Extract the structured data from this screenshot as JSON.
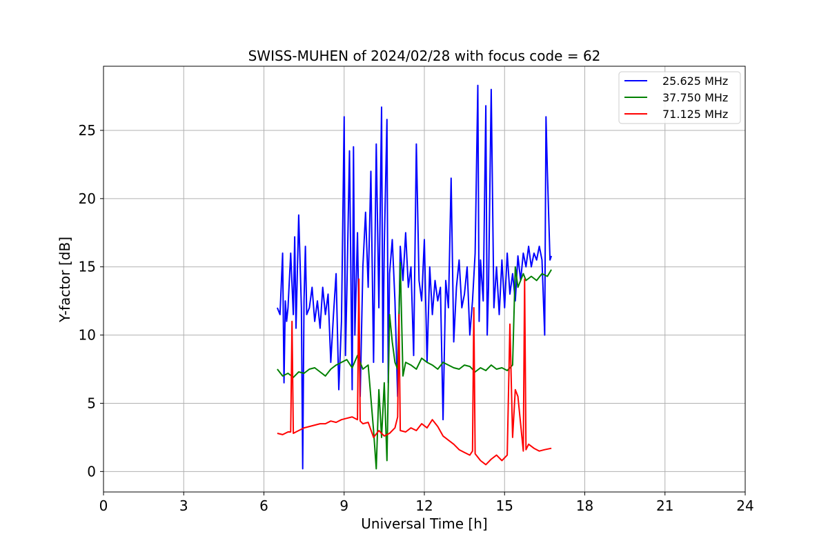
{
  "chart_data": {
    "type": "line",
    "title": "SWISS-MUHEN of 2024/02/28 with focus code = 62",
    "xlabel": "Universal Time [h]",
    "ylabel": "Y-factor [dB]",
    "xlim": [
      0,
      24
    ],
    "ylim": [
      -1.5,
      29.7
    ],
    "xticks": [
      0,
      3,
      6,
      9,
      12,
      15,
      18,
      21,
      24
    ],
    "yticks": [
      0,
      5,
      10,
      15,
      20,
      25
    ],
    "grid": true,
    "legend_position": "top-right",
    "series": [
      {
        "name": "25.625 MHz",
        "color": "#0000ff",
        "x": [
          6.5,
          6.6,
          6.7,
          6.75,
          6.8,
          6.85,
          6.9,
          7.0,
          7.1,
          7.15,
          7.2,
          7.3,
          7.4,
          7.45,
          7.5,
          7.55,
          7.6,
          7.7,
          7.8,
          7.9,
          8.0,
          8.1,
          8.2,
          8.3,
          8.4,
          8.5,
          8.6,
          8.7,
          8.8,
          8.9,
          9.0,
          9.05,
          9.1,
          9.2,
          9.3,
          9.35,
          9.4,
          9.5,
          9.6,
          9.7,
          9.8,
          9.9,
          10.0,
          10.1,
          10.2,
          10.3,
          10.4,
          10.45,
          10.5,
          10.6,
          10.65,
          10.7,
          10.8,
          10.9,
          11.0,
          11.1,
          11.2,
          11.3,
          11.4,
          11.5,
          11.6,
          11.7,
          11.8,
          11.9,
          12.0,
          12.1,
          12.2,
          12.3,
          12.4,
          12.5,
          12.6,
          12.7,
          12.8,
          12.9,
          13.0,
          13.1,
          13.2,
          13.3,
          13.4,
          13.5,
          13.6,
          13.7,
          13.8,
          13.9,
          14.0,
          14.05,
          14.1,
          14.2,
          14.3,
          14.35,
          14.4,
          14.5,
          14.6,
          14.7,
          14.8,
          14.9,
          15.0,
          15.1,
          15.2,
          15.3,
          15.4,
          15.5,
          15.6,
          15.7,
          15.8,
          15.9,
          16.0,
          16.1,
          16.2,
          16.3,
          16.4,
          16.5,
          16.55,
          16.6,
          16.7,
          16.75
        ],
        "y": [
          12.0,
          11.5,
          16.0,
          6.5,
          12.5,
          11.0,
          12.0,
          16.0,
          11.5,
          17.2,
          10.5,
          18.8,
          12.0,
          0.2,
          12.5,
          16.5,
          11.5,
          12.0,
          13.5,
          11.0,
          12.5,
          10.5,
          13.5,
          11.5,
          13.0,
          8.0,
          11.5,
          14.5,
          6.0,
          11.0,
          26.0,
          8.5,
          13.0,
          23.5,
          6.0,
          23.8,
          10.0,
          17.5,
          5.5,
          15.0,
          19.0,
          13.5,
          22.0,
          8.0,
          24.0,
          12.0,
          26.7,
          8.0,
          16.5,
          25.8,
          6.5,
          14.5,
          17.0,
          12.5,
          5.5,
          16.5,
          14.0,
          17.5,
          13.5,
          15.0,
          8.5,
          24.0,
          14.0,
          12.5,
          17.0,
          8.0,
          15.0,
          11.5,
          14.0,
          12.5,
          13.5,
          3.8,
          14.0,
          12.0,
          21.5,
          9.5,
          13.5,
          15.5,
          12.0,
          13.0,
          15.0,
          10.0,
          12.5,
          16.0,
          28.3,
          11.0,
          15.5,
          12.5,
          26.8,
          10.0,
          13.5,
          28.0,
          12.0,
          15.0,
          11.5,
          15.5,
          12.0,
          16.0,
          13.0,
          14.5,
          12.5,
          15.8,
          14.0,
          16.0,
          15.0,
          16.5,
          15.0,
          16.0,
          15.5,
          16.5,
          15.5,
          10.0,
          26.0,
          22.0,
          15.5,
          15.8
        ]
      },
      {
        "name": "37.750 MHz",
        "color": "#008000",
        "x": [
          6.5,
          6.7,
          6.9,
          7.1,
          7.3,
          7.5,
          7.7,
          7.9,
          8.1,
          8.3,
          8.5,
          8.7,
          8.9,
          9.1,
          9.3,
          9.5,
          9.7,
          9.9,
          10.1,
          10.2,
          10.3,
          10.4,
          10.5,
          10.6,
          10.7,
          10.8,
          10.9,
          11.0,
          11.1,
          11.2,
          11.3,
          11.5,
          11.7,
          11.9,
          12.1,
          12.3,
          12.5,
          12.7,
          12.9,
          13.1,
          13.3,
          13.5,
          13.7,
          13.9,
          14.1,
          14.3,
          14.5,
          14.7,
          14.9,
          15.1,
          15.3,
          15.4,
          15.5,
          15.6,
          15.7,
          15.8,
          16.0,
          16.2,
          16.4,
          16.6,
          16.75
        ],
        "y": [
          7.5,
          7.0,
          7.2,
          6.9,
          7.3,
          7.2,
          7.5,
          7.6,
          7.3,
          7.0,
          7.5,
          7.8,
          8.0,
          8.2,
          7.6,
          8.5,
          7.5,
          7.8,
          3.0,
          0.2,
          6.0,
          2.5,
          6.5,
          0.8,
          11.5,
          9.5,
          8.0,
          7.5,
          15.3,
          7.0,
          8.0,
          7.8,
          7.5,
          8.3,
          8.0,
          7.8,
          7.5,
          8.0,
          7.8,
          7.6,
          7.5,
          7.8,
          7.7,
          7.3,
          7.6,
          7.4,
          7.8,
          7.5,
          7.6,
          7.4,
          7.8,
          15.0,
          13.5,
          14.0,
          14.5,
          14.0,
          14.3,
          14.0,
          14.5,
          14.3,
          14.8
        ]
      },
      {
        "name": "71.125 MHz",
        "color": "#ff0000",
        "x": [
          6.5,
          6.7,
          6.9,
          7.0,
          7.05,
          7.1,
          7.3,
          7.5,
          7.7,
          7.9,
          8.1,
          8.3,
          8.5,
          8.7,
          8.9,
          9.1,
          9.3,
          9.5,
          9.55,
          9.6,
          9.7,
          9.9,
          10.1,
          10.3,
          10.5,
          10.7,
          10.9,
          11.0,
          11.05,
          11.1,
          11.3,
          11.5,
          11.7,
          11.9,
          12.1,
          12.3,
          12.5,
          12.7,
          12.9,
          13.1,
          13.3,
          13.5,
          13.7,
          13.8,
          13.85,
          13.9,
          14.1,
          14.3,
          14.5,
          14.7,
          14.9,
          15.1,
          15.2,
          15.3,
          15.4,
          15.5,
          15.6,
          15.7,
          15.75,
          15.8,
          15.9,
          16.1,
          16.3,
          16.5,
          16.75
        ],
        "y": [
          2.8,
          2.7,
          2.9,
          2.9,
          11.0,
          2.8,
          3.0,
          3.2,
          3.3,
          3.4,
          3.5,
          3.5,
          3.7,
          3.6,
          3.8,
          3.9,
          4.0,
          3.8,
          14.1,
          3.7,
          3.5,
          3.6,
          2.5,
          3.0,
          2.6,
          2.8,
          3.2,
          4.0,
          11.5,
          3.0,
          2.9,
          3.2,
          3.0,
          3.5,
          3.2,
          3.8,
          3.3,
          2.6,
          2.3,
          2.0,
          1.6,
          1.4,
          1.2,
          1.5,
          12.0,
          1.3,
          0.8,
          0.5,
          0.9,
          1.2,
          0.8,
          1.2,
          10.8,
          2.5,
          6.0,
          5.5,
          3.5,
          1.5,
          14.1,
          1.6,
          2.0,
          1.7,
          1.5,
          1.6,
          1.7
        ]
      }
    ]
  }
}
